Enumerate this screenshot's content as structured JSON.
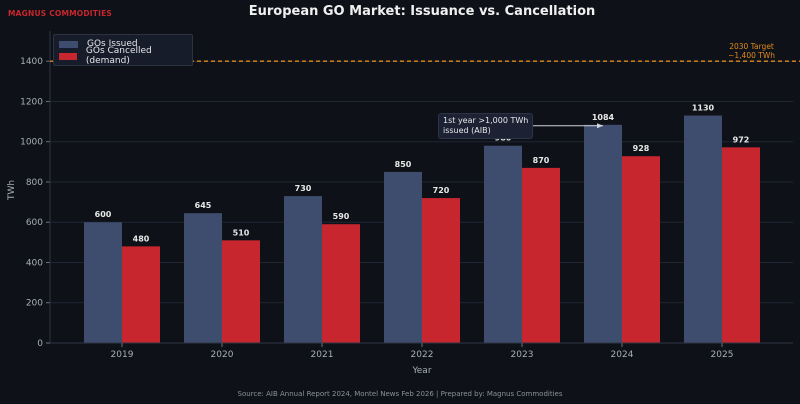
{
  "brand": "MAGNUS COMMODITIES",
  "footer": "Source: AIB Annual Report 2024, Montel News Feb 2026  |  Prepared by: Magnus Commodities",
  "colors": {
    "issued": "#3e4c6e",
    "cancelled": "#c8262e",
    "target": "#e08a1e",
    "background": "#0e1117"
  },
  "chart_data": {
    "type": "bar",
    "title": "European GO Market: Issuance vs. Cancellation",
    "xlabel": "Year",
    "ylabel": "TWh",
    "categories": [
      "2019",
      "2020",
      "2021",
      "2022",
      "2023",
      "2024",
      "2025"
    ],
    "series": [
      {
        "name": "GOs Issued",
        "values": [
          600,
          645,
          730,
          850,
          980,
          1084,
          1130
        ]
      },
      {
        "name": "GOs Cancelled (demand)",
        "values": [
          480,
          510,
          590,
          720,
          870,
          928,
          972
        ]
      }
    ],
    "ylim": [
      0,
      1550
    ],
    "yticks": [
      0,
      200,
      400,
      600,
      800,
      1000,
      1200,
      1400
    ],
    "grid": true,
    "legend_position": "top-left",
    "reference_line": {
      "value": 1400,
      "label_line1": "2030 Target",
      "label_line2": "~1,400 TWh",
      "style": "dashed"
    },
    "annotation": {
      "line1": "1st year >1,000 TWh",
      "line2": "issued (AIB)",
      "points_to": "2024"
    }
  }
}
